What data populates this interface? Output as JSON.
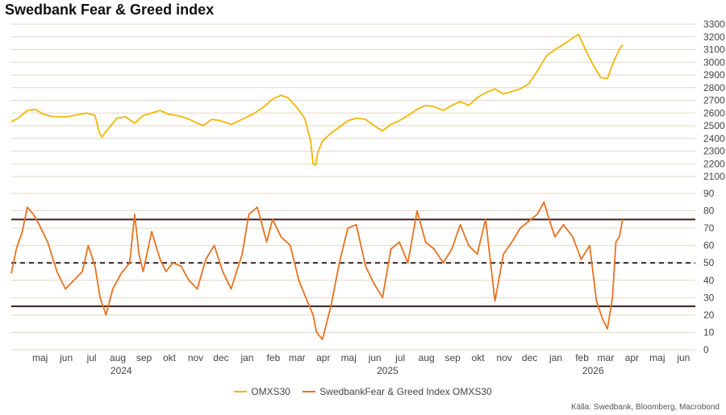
{
  "chart_data": [
    {
      "type": "line",
      "title": "Swedbank Fear & Greed index",
      "series": [
        {
          "name": "OMXS30",
          "color": "#f2b705",
          "x": [
            "2024-04-12",
            "2024-04-20",
            "2024-05-01",
            "2024-05-10",
            "2024-05-20",
            "2024-06-01",
            "2024-06-15",
            "2024-06-25",
            "2024-07-10",
            "2024-07-20",
            "2024-07-25",
            "2024-07-28",
            "2024-08-05",
            "2024-08-15",
            "2024-08-25",
            "2024-09-05",
            "2024-09-15",
            "2024-09-25",
            "2024-10-05",
            "2024-10-15",
            "2024-10-25",
            "2024-11-05",
            "2024-11-15",
            "2024-11-25",
            "2024-12-05",
            "2024-12-15",
            "2024-12-28",
            "2025-01-10",
            "2025-01-25",
            "2025-02-05",
            "2025-02-15",
            "2025-02-25",
            "2025-03-05",
            "2025-03-15",
            "2025-03-25",
            "2025-04-01",
            "2025-04-04",
            "2025-04-07",
            "2025-04-09",
            "2025-04-15",
            "2025-04-25",
            "2025-05-05",
            "2025-05-15",
            "2025-05-25",
            "2025-06-05",
            "2025-06-15",
            "2025-06-25",
            "2025-07-05",
            "2025-07-15",
            "2025-07-25",
            "2025-08-05",
            "2025-08-15",
            "2025-08-25",
            "2025-09-05",
            "2025-09-15",
            "2025-09-25",
            "2025-10-05",
            "2025-10-15",
            "2025-10-25",
            "2025-11-05",
            "2025-11-15",
            "2025-11-25",
            "2025-12-05",
            "2025-12-15",
            "2025-12-25",
            "2026-01-05",
            "2026-01-15",
            "2026-01-25",
            "2026-02-05",
            "2026-02-12",
            "2026-02-20",
            "2026-03-01",
            "2026-03-10",
            "2026-03-18",
            "2026-03-25",
            "2026-04-01",
            "2026-04-05"
          ],
          "values": [
            2530,
            2560,
            2620,
            2630,
            2590,
            2570,
            2570,
            2580,
            2600,
            2580,
            2450,
            2410,
            2480,
            2560,
            2570,
            2520,
            2580,
            2600,
            2620,
            2590,
            2580,
            2560,
            2530,
            2500,
            2550,
            2540,
            2510,
            2550,
            2600,
            2650,
            2710,
            2740,
            2720,
            2650,
            2560,
            2380,
            2200,
            2190,
            2280,
            2380,
            2440,
            2490,
            2540,
            2560,
            2550,
            2500,
            2460,
            2510,
            2540,
            2580,
            2630,
            2660,
            2650,
            2620,
            2660,
            2690,
            2660,
            2720,
            2760,
            2790,
            2750,
            2770,
            2790,
            2830,
            2930,
            3050,
            3100,
            3140,
            3190,
            3220,
            3100,
            2980,
            2880,
            2870,
            3000,
            3100,
            3140
          ]
        },
        {
          "name": "SwedbankFear & Greed Index OMXS30",
          "color": "#e8711f",
          "x": [
            "2024-04-12",
            "2024-04-18",
            "2024-04-25",
            "2024-05-01",
            "2024-05-08",
            "2024-05-15",
            "2024-05-25",
            "2024-06-05",
            "2024-06-15",
            "2024-06-25",
            "2024-07-05",
            "2024-07-12",
            "2024-07-20",
            "2024-07-26",
            "2024-08-02",
            "2024-08-10",
            "2024-08-20",
            "2024-08-30",
            "2024-09-05",
            "2024-09-10",
            "2024-09-15",
            "2024-09-25",
            "2024-10-05",
            "2024-10-12",
            "2024-10-20",
            "2024-10-30",
            "2024-11-08",
            "2024-11-18",
            "2024-11-28",
            "2024-12-08",
            "2024-12-18",
            "2024-12-28",
            "2025-01-10",
            "2025-01-18",
            "2025-01-28",
            "2025-02-08",
            "2025-02-15",
            "2025-02-25",
            "2025-03-08",
            "2025-03-18",
            "2025-03-28",
            "2025-04-04",
            "2025-04-08",
            "2025-04-15",
            "2025-04-25",
            "2025-05-05",
            "2025-05-15",
            "2025-05-25",
            "2025-06-05",
            "2025-06-15",
            "2025-06-25",
            "2025-07-05",
            "2025-07-15",
            "2025-07-25",
            "2025-08-05",
            "2025-08-15",
            "2025-08-25",
            "2025-09-05",
            "2025-09-15",
            "2025-09-25",
            "2025-10-05",
            "2025-10-15",
            "2025-10-25",
            "2025-11-01",
            "2025-11-05",
            "2025-11-15",
            "2025-11-25",
            "2025-12-05",
            "2025-12-15",
            "2025-12-25",
            "2026-01-02",
            "2026-01-08",
            "2026-01-15",
            "2026-01-25",
            "2026-02-05",
            "2026-02-15",
            "2026-02-25",
            "2026-03-05",
            "2026-03-12",
            "2026-03-18",
            "2026-03-24",
            "2026-03-28",
            "2026-04-01",
            "2026-04-05"
          ],
          "values": [
            44,
            58,
            68,
            82,
            78,
            72,
            62,
            45,
            35,
            40,
            45,
            60,
            48,
            30,
            20,
            35,
            44,
            50,
            78,
            55,
            45,
            68,
            52,
            45,
            50,
            48,
            40,
            35,
            52,
            60,
            45,
            35,
            55,
            78,
            82,
            62,
            75,
            65,
            60,
            40,
            28,
            20,
            10,
            6,
            25,
            50,
            70,
            72,
            48,
            38,
            30,
            58,
            62,
            50,
            80,
            62,
            58,
            50,
            58,
            72,
            60,
            55,
            75,
            45,
            28,
            55,
            62,
            70,
            74,
            78,
            85,
            75,
            65,
            72,
            65,
            52,
            60,
            28,
            18,
            12,
            30,
            62,
            65,
            75
          ]
        }
      ],
      "xlim": [
        "2024-04-12",
        "2026-06-30"
      ],
      "top_axis": {
        "ylim": [
          2100,
          3300
        ],
        "ticks": [
          2100,
          2200,
          2300,
          2400,
          2500,
          2600,
          2700,
          2800,
          2900,
          3000,
          3100,
          3200,
          3300
        ]
      },
      "bottom_axis": {
        "ylim": [
          0,
          90
        ],
        "ticks": [
          0,
          10,
          20,
          30,
          40,
          50,
          60,
          70,
          80,
          90
        ]
      },
      "reference_lines": [
        {
          "value": 75,
          "style": "solid",
          "color": "#3a1f1f"
        },
        {
          "value": 50,
          "style": "dashed",
          "color": "#3a1f1f"
        },
        {
          "value": 25,
          "style": "solid",
          "color": "#3a1f1f"
        }
      ],
      "month_labels": [
        {
          "label": "maj",
          "date": "2024-05-16"
        },
        {
          "label": "jun",
          "date": "2024-06-16"
        },
        {
          "label": "jul",
          "date": "2024-07-16"
        },
        {
          "label": "aug",
          "date": "2024-08-16"
        },
        {
          "label": "sep",
          "date": "2024-09-16"
        },
        {
          "label": "okt",
          "date": "2024-10-16"
        },
        {
          "label": "nov",
          "date": "2024-11-16"
        },
        {
          "label": "dec",
          "date": "2024-12-16"
        },
        {
          "label": "jan",
          "date": "2025-01-16"
        },
        {
          "label": "feb",
          "date": "2025-02-16"
        },
        {
          "label": "mar",
          "date": "2025-03-16"
        },
        {
          "label": "apr",
          "date": "2025-04-16"
        },
        {
          "label": "maj",
          "date": "2025-05-16"
        },
        {
          "label": "jun",
          "date": "2025-06-16"
        },
        {
          "label": "jul",
          "date": "2025-07-16"
        },
        {
          "label": "aug",
          "date": "2025-08-16"
        },
        {
          "label": "sep",
          "date": "2025-09-16"
        },
        {
          "label": "okt",
          "date": "2025-10-16"
        },
        {
          "label": "nov",
          "date": "2025-11-16"
        },
        {
          "label": "dec",
          "date": "2025-12-16"
        },
        {
          "label": "jan",
          "date": "2026-01-16"
        },
        {
          "label": "feb",
          "date": "2026-02-16"
        },
        {
          "label": "mar",
          "date": "2026-03-16"
        },
        {
          "label": "apr",
          "date": "2026-04-16"
        },
        {
          "label": "maj",
          "date": "2026-05-16"
        },
        {
          "label": "jun",
          "date": "2026-06-16"
        }
      ],
      "year_labels": [
        {
          "label": "2024",
          "date": "2024-08-20"
        },
        {
          "label": "2025",
          "date": "2025-07-01"
        },
        {
          "label": "2026",
          "date": "2026-03-01"
        }
      ],
      "grid": true,
      "legend_position": "bottom"
    }
  ],
  "legend": {
    "item1": "OMXS30",
    "item2": "SwedbankFear & Greed Index OMXS30"
  },
  "source": "Källa: Swedbank, Bloomberg, Macrobond"
}
